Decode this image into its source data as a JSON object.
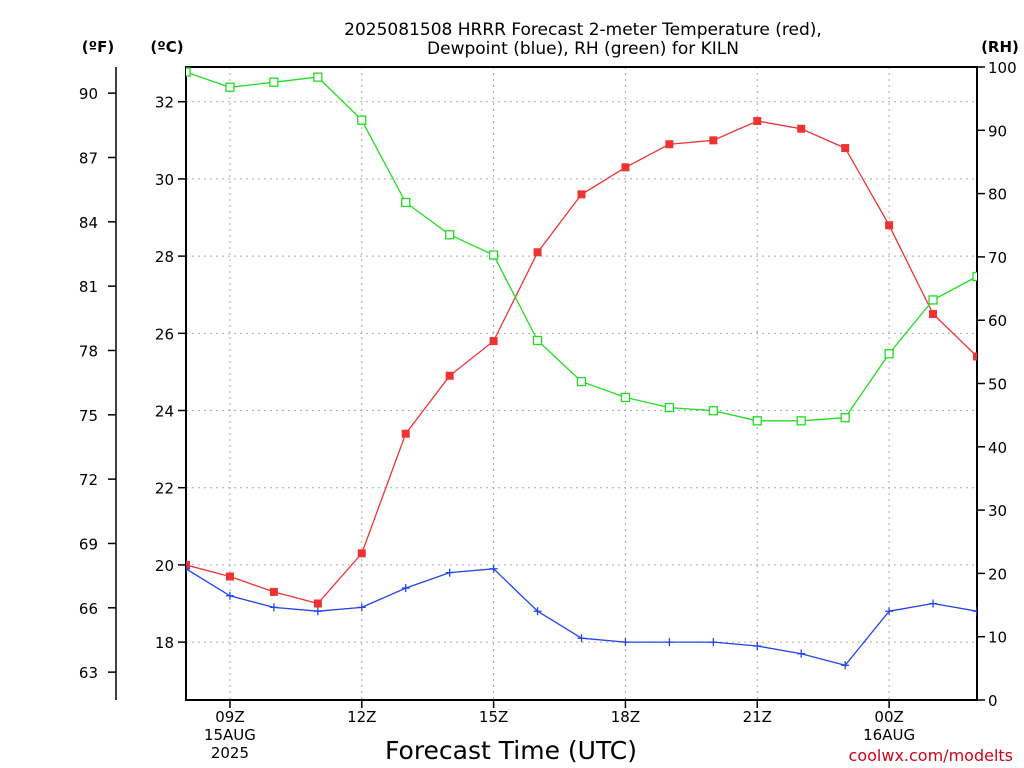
{
  "chart_data": {
    "type": "line",
    "title_lines": [
      "2025081508 HRRR Forecast 2-meter Temperature (red),",
      "Dewpoint (blue), RH (green) for KILN"
    ],
    "xlabel": "Forecast Time (UTC)",
    "watermark": "coolwx.com/modelts",
    "units": {
      "fahrenheit": "(ºF)",
      "celsius": "(ºC)",
      "rh": "(RH)"
    },
    "x_hours": [
      8,
      9,
      10,
      11,
      12,
      13,
      14,
      15,
      16,
      17,
      18,
      19,
      20,
      21,
      22,
      23,
      24,
      25,
      26
    ],
    "x_range": [
      8,
      26
    ],
    "x_ticks": [
      {
        "x": 9,
        "lines": [
          "09Z",
          "15AUG",
          "2025"
        ]
      },
      {
        "x": 12,
        "lines": [
          "12Z"
        ]
      },
      {
        "x": 15,
        "lines": [
          "15Z"
        ]
      },
      {
        "x": 18,
        "lines": [
          "18Z"
        ]
      },
      {
        "x": 21,
        "lines": [
          "21Z"
        ]
      },
      {
        "x": 24,
        "lines": [
          "00Z",
          "16AUG"
        ]
      }
    ],
    "y_celsius": {
      "range": [
        16.5,
        32.9
      ],
      "ticks": [
        18,
        20,
        22,
        24,
        26,
        28,
        30,
        32
      ]
    },
    "y_fahrenheit": {
      "ticks": [
        63,
        66,
        69,
        72,
        75,
        78,
        81,
        84,
        87,
        90
      ]
    },
    "y_rh": {
      "range": [
        0,
        100
      ],
      "ticks": [
        0,
        10,
        20,
        30,
        40,
        50,
        60,
        70,
        80,
        90,
        100
      ]
    },
    "series": [
      {
        "name": "Temperature",
        "axis": "celsius",
        "color": "#ee3333",
        "marker": "filled-square",
        "values": [
          20.0,
          19.7,
          19.3,
          19.0,
          20.3,
          23.4,
          24.9,
          25.8,
          28.1,
          29.6,
          30.3,
          30.9,
          31.0,
          31.5,
          31.3,
          30.8,
          28.8,
          26.5,
          25.4
        ]
      },
      {
        "name": "Dewpoint",
        "axis": "celsius",
        "color": "#2244ee",
        "marker": "plus",
        "values": [
          19.9,
          19.2,
          18.9,
          18.8,
          18.9,
          19.4,
          19.8,
          19.9,
          18.8,
          18.1,
          18.0,
          18.0,
          18.0,
          17.9,
          17.7,
          17.4,
          18.8,
          19.0,
          18.8
        ]
      },
      {
        "name": "RH",
        "axis": "rh",
        "color": "#22dd22",
        "marker": "open-square",
        "values": [
          99.2,
          96.8,
          97.6,
          98.4,
          91.6,
          78.6,
          73.5,
          70.3,
          56.8,
          50.3,
          47.8,
          46.2,
          45.7,
          44.1,
          44.1,
          44.6,
          54.7,
          63.2,
          66.9
        ]
      }
    ],
    "grid": true
  }
}
